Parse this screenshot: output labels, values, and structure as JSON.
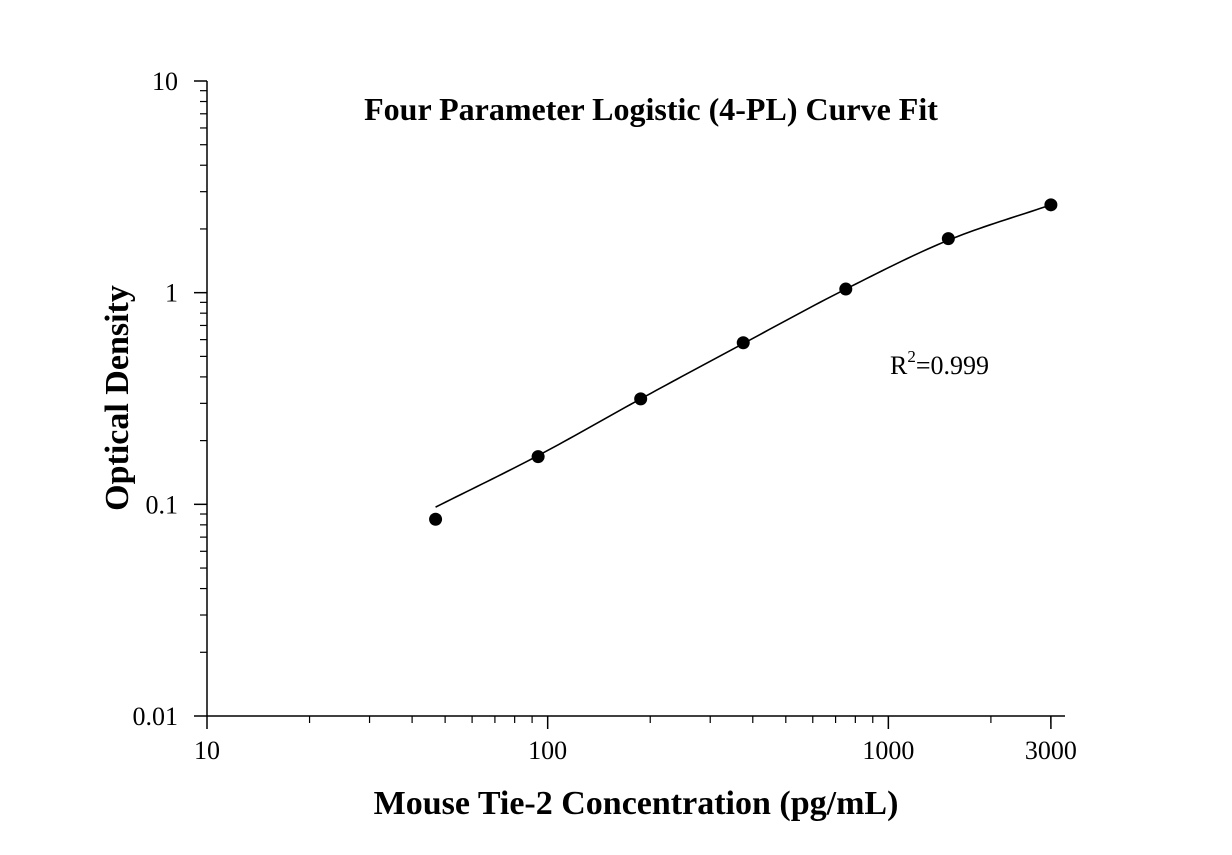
{
  "chart_data": {
    "type": "scatter",
    "title": "Four Parameter Logistic (4-PL) Curve Fit",
    "xlabel": "Mouse Tie-2 Concentration (pg/mL)",
    "ylabel": "Optical Density",
    "x_scale": "log",
    "y_scale": "log",
    "xlim": [
      10,
      3300
    ],
    "ylim": [
      0.01,
      10
    ],
    "x_ticks": [
      {
        "value": 10,
        "label": "10"
      },
      {
        "value": 100,
        "label": "100"
      },
      {
        "value": 1000,
        "label": "1000"
      },
      {
        "value": 3000,
        "label": "3000"
      }
    ],
    "y_ticks": [
      {
        "value": 0.01,
        "label": "0.01"
      },
      {
        "value": 0.1,
        "label": "0.1"
      },
      {
        "value": 1,
        "label": "1"
      },
      {
        "value": 10,
        "label": "10"
      }
    ],
    "grid": false,
    "series": [
      {
        "kind": "points",
        "x": [
          46.875,
          93.75,
          187.5,
          375,
          750,
          1500,
          3000
        ],
        "y": [
          0.085,
          0.168,
          0.315,
          0.58,
          1.04,
          1.8,
          2.6
        ],
        "color": "#000000"
      },
      {
        "kind": "fit-curve",
        "x_range": [
          46.875,
          3000
        ],
        "x_anchors": [
          46.875,
          93.75,
          187.5,
          375,
          750,
          1500,
          3000
        ],
        "y_anchors": [
          0.097,
          0.17,
          0.315,
          0.575,
          1.04,
          1.77,
          2.6
        ],
        "color": "#000000"
      }
    ],
    "annotations": [
      {
        "text": "R",
        "superscript": "2",
        "suffix": "=0.999"
      }
    ]
  }
}
